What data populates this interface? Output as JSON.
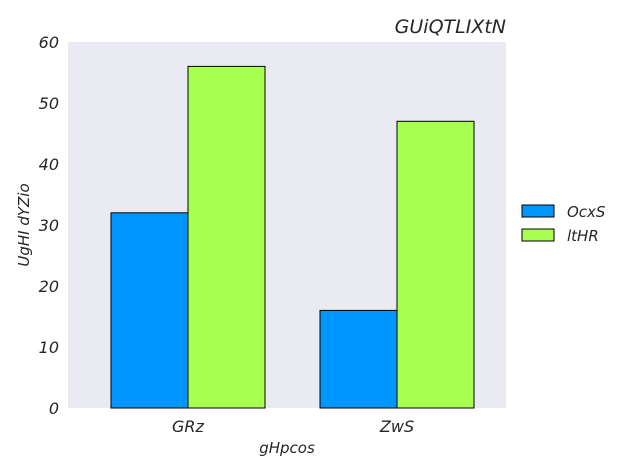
{
  "chart_data": {
    "type": "bar",
    "title": "GUiQTLIXtN",
    "xlabel": "gHpcos",
    "ylabel": "UgHI dYZio",
    "categories": [
      "GRz",
      "ZwS"
    ],
    "series": [
      {
        "name": "OcxS",
        "values": [
          32,
          16
        ],
        "color": "#0096ff"
      },
      {
        "name": "ltHR",
        "values": [
          56,
          47
        ],
        "color": "#a8ff50"
      }
    ],
    "ylim": [
      0,
      60
    ],
    "yticks": [
      0,
      10,
      20,
      30,
      40,
      50,
      60
    ],
    "grid": false,
    "legend_position": "right"
  },
  "style": {
    "plot_background": "#eaeaf2",
    "bar_edge": "#000000",
    "text_color": "#262626"
  }
}
